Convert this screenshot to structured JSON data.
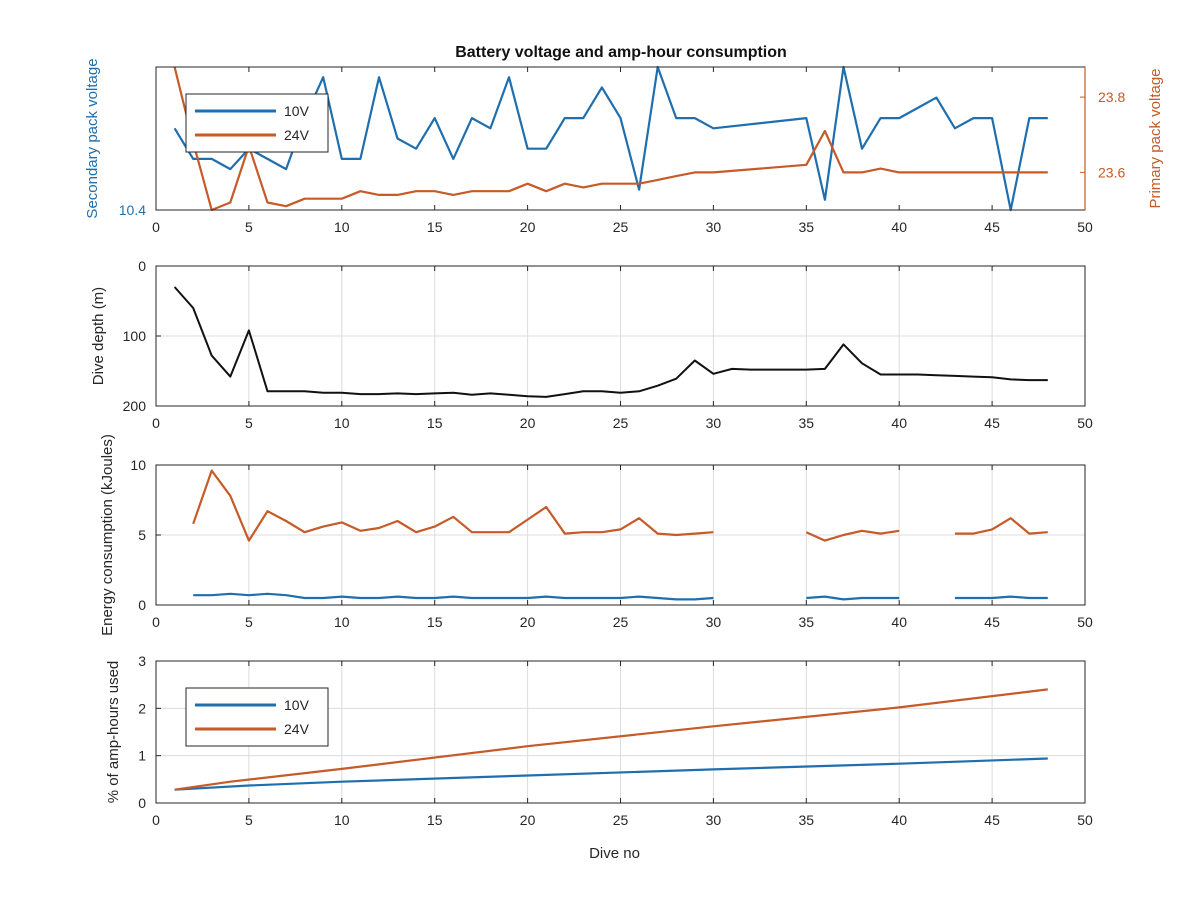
{
  "title": "Battery voltage and amp-hour consumption",
  "colors": {
    "ten_v": "#1f6fae",
    "twenty_four_v": "#c65a28",
    "depth": "#111111",
    "axis": "#262626",
    "grid": "#dcdcdc"
  },
  "chart_data": [
    {
      "type": "line",
      "title": "Battery voltage and amp-hour consumption",
      "xlabel": "",
      "ylabel_left": "Secondary pack voltage",
      "ylabel_right": "Primary pack voltage",
      "xlim": [
        0,
        50
      ],
      "xticks": [
        "0",
        "5",
        "10",
        "15",
        "20",
        "25",
        "30",
        "35",
        "40",
        "45",
        "50"
      ],
      "ylim_left": [
        10.4,
        10.54
      ],
      "yticks_left": [
        "10.4"
      ],
      "ylim_right": [
        23.5,
        23.88
      ],
      "yticks_right": [
        "23.6",
        "23.8"
      ],
      "grid": false,
      "legend_position": "top-left",
      "legend": [
        "10V",
        "24V"
      ],
      "series": [
        {
          "name": "10V",
          "axis": "left",
          "x": [
            1,
            2,
            3,
            4,
            5,
            6,
            7,
            8,
            9,
            10,
            11,
            12,
            13,
            14,
            15,
            16,
            17,
            18,
            19,
            20,
            21,
            22,
            23,
            24,
            25,
            26,
            27,
            28,
            29,
            30,
            35,
            36,
            37,
            38,
            39,
            40,
            41,
            42,
            43,
            44,
            45,
            46,
            47,
            48
          ],
          "y": [
            10.48,
            10.45,
            10.45,
            10.44,
            10.46,
            10.45,
            10.44,
            10.49,
            10.53,
            10.45,
            10.45,
            10.53,
            10.47,
            10.46,
            10.49,
            10.45,
            10.49,
            10.48,
            10.53,
            10.46,
            10.46,
            10.49,
            10.49,
            10.52,
            10.49,
            10.42,
            10.54,
            10.49,
            10.49,
            10.48,
            10.49,
            10.41,
            10.54,
            10.46,
            10.49,
            10.49,
            10.5,
            10.51,
            10.48,
            10.49,
            10.49,
            10.4,
            10.49,
            10.49
          ]
        },
        {
          "name": "24V",
          "axis": "right",
          "x": [
            1,
            2,
            3,
            4,
            5,
            6,
            7,
            8,
            9,
            10,
            11,
            12,
            13,
            14,
            15,
            16,
            17,
            18,
            19,
            20,
            21,
            22,
            23,
            24,
            25,
            26,
            27,
            28,
            29,
            30,
            35,
            36,
            37,
            38,
            39,
            40,
            41,
            42,
            43,
            44,
            45,
            46,
            47,
            48
          ],
          "y": [
            23.88,
            23.68,
            23.5,
            23.52,
            23.67,
            23.52,
            23.51,
            23.53,
            23.53,
            23.53,
            23.55,
            23.54,
            23.54,
            23.55,
            23.55,
            23.54,
            23.55,
            23.55,
            23.55,
            23.57,
            23.55,
            23.57,
            23.56,
            23.57,
            23.57,
            23.57,
            23.58,
            23.59,
            23.6,
            23.6,
            23.62,
            23.71,
            23.6,
            23.6,
            23.61,
            23.6,
            23.6,
            23.6,
            23.6,
            23.6,
            23.6,
            23.6,
            23.6,
            23.6
          ]
        }
      ]
    },
    {
      "type": "line",
      "title": "",
      "xlabel": "",
      "ylabel": "Dive depth (m)",
      "xlim": [
        0,
        50
      ],
      "xticks": [
        "0",
        "5",
        "10",
        "15",
        "20",
        "25",
        "30",
        "35",
        "40",
        "45",
        "50"
      ],
      "ylim": [
        200,
        0
      ],
      "reversed_y": true,
      "yticks": [
        "0",
        "100",
        "200"
      ],
      "grid": true,
      "series": [
        {
          "x": [
            1,
            2,
            3,
            4,
            5,
            6,
            7,
            8,
            9,
            10,
            11,
            12,
            13,
            14,
            15,
            16,
            17,
            18,
            19,
            20,
            21,
            22,
            23,
            24,
            25,
            26,
            27,
            28,
            29,
            30,
            31,
            32,
            33,
            34,
            35,
            36,
            37,
            38,
            39,
            40,
            41,
            42,
            43,
            44,
            45,
            46,
            47,
            48
          ],
          "y": [
            30,
            60,
            128,
            158,
            92,
            179,
            179,
            179,
            181,
            181,
            183,
            183,
            182,
            183,
            182,
            181,
            184,
            182,
            184,
            186,
            187,
            183,
            179,
            179,
            181,
            179,
            171,
            161,
            135,
            154,
            147,
            148,
            148,
            148,
            148,
            147,
            112,
            139,
            155,
            155,
            155,
            156,
            157,
            158,
            159,
            162,
            163,
            163
          ]
        }
      ]
    },
    {
      "type": "line",
      "title": "",
      "xlabel": "",
      "ylabel": "Energy consumption (kJoules)",
      "xlim": [
        0,
        50
      ],
      "xticks": [
        "0",
        "5",
        "10",
        "15",
        "20",
        "25",
        "30",
        "35",
        "40",
        "45",
        "50"
      ],
      "ylim": [
        0,
        10
      ],
      "yticks": [
        "0",
        "5",
        "10"
      ],
      "grid": true,
      "series": [
        {
          "name": "24V",
          "segments": [
            {
              "x": [
                2,
                3,
                4,
                5,
                6,
                7,
                8,
                9,
                10,
                11,
                12,
                13,
                14,
                15,
                16,
                17,
                18,
                19,
                20,
                21,
                22,
                23,
                24,
                25,
                26,
                27,
                28,
                29,
                30
              ],
              "y": [
                5.8,
                9.6,
                7.8,
                4.6,
                6.7,
                6,
                5.2,
                5.6,
                5.9,
                5.3,
                5.5,
                6,
                5.2,
                5.6,
                6.3,
                5.2,
                5.2,
                5.2,
                6.1,
                7,
                5.1,
                5.2,
                5.2,
                5.4,
                6.2,
                5.1,
                5,
                5.1,
                5.2
              ]
            },
            {
              "x": [
                35,
                36,
                37,
                38,
                39,
                40
              ],
              "y": [
                5.2,
                4.6,
                5,
                5.3,
                5.1,
                5.3
              ]
            },
            {
              "x": [
                43,
                44,
                45,
                46,
                47,
                48
              ],
              "y": [
                5.1,
                5.1,
                5.4,
                6.2,
                5.1,
                5.2
              ]
            }
          ]
        },
        {
          "name": "10V",
          "segments": [
            {
              "x": [
                2,
                3,
                4,
                5,
                6,
                7,
                8,
                9,
                10,
                11,
                12,
                13,
                14,
                15,
                16,
                17,
                18,
                19,
                20,
                21,
                22,
                23,
                24,
                25,
                26,
                27,
                28,
                29,
                30
              ],
              "y": [
                0.7,
                0.7,
                0.8,
                0.7,
                0.8,
                0.7,
                0.5,
                0.5,
                0.6,
                0.5,
                0.5,
                0.6,
                0.5,
                0.5,
                0.6,
                0.5,
                0.5,
                0.5,
                0.5,
                0.6,
                0.5,
                0.5,
                0.5,
                0.5,
                0.6,
                0.5,
                0.4,
                0.4,
                0.5
              ]
            },
            {
              "x": [
                35,
                36,
                37,
                38,
                39,
                40
              ],
              "y": [
                0.5,
                0.6,
                0.4,
                0.5,
                0.5,
                0.5
              ]
            },
            {
              "x": [
                43,
                44,
                45,
                46,
                47,
                48
              ],
              "y": [
                0.5,
                0.5,
                0.5,
                0.6,
                0.5,
                0.5
              ]
            }
          ]
        }
      ]
    },
    {
      "type": "line",
      "title": "",
      "xlabel": "Dive no",
      "ylabel": "% of amp-hours used",
      "xlim": [
        0,
        50
      ],
      "xticks": [
        "0",
        "5",
        "10",
        "15",
        "20",
        "25",
        "30",
        "35",
        "40",
        "45",
        "50"
      ],
      "ylim": [
        0,
        3
      ],
      "yticks": [
        "0",
        "1",
        "2",
        "3"
      ],
      "grid": true,
      "legend_position": "top-left",
      "legend": [
        "10V",
        "24V"
      ],
      "series": [
        {
          "name": "10V",
          "x": [
            1,
            5,
            10,
            20,
            30,
            40,
            48
          ],
          "y": [
            0.28,
            0.37,
            0.45,
            0.58,
            0.71,
            0.83,
            0.94
          ]
        },
        {
          "name": "24V",
          "x": [
            1,
            4,
            10,
            20,
            30,
            40,
            48
          ],
          "y": [
            0.28,
            0.45,
            0.72,
            1.2,
            1.62,
            2.02,
            2.4
          ]
        }
      ]
    }
  ]
}
